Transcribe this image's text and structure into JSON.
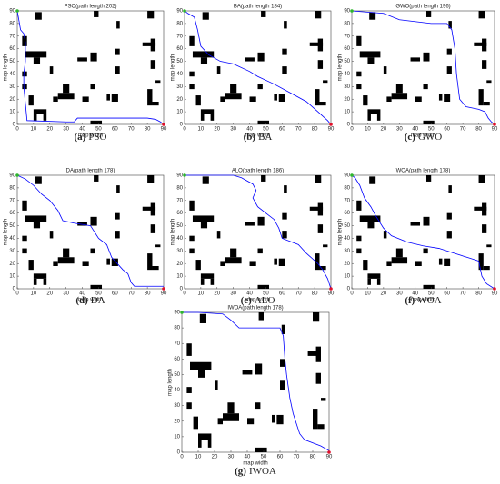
{
  "map": {
    "obstacles": [
      [
        3,
        62,
        3,
        8
      ],
      [
        11,
        83,
        4,
        6
      ],
      [
        3,
        38,
        3,
        4
      ],
      [
        3,
        28,
        3,
        4
      ],
      [
        7,
        15,
        3,
        8
      ],
      [
        5,
        53,
        13,
        5
      ],
      [
        10,
        48,
        4,
        5
      ],
      [
        10,
        8,
        8,
        4
      ],
      [
        10,
        3,
        2,
        5
      ],
      [
        16,
        3,
        2,
        5
      ],
      [
        20,
        40,
        2,
        6
      ],
      [
        22,
        18,
        3,
        4
      ],
      [
        25,
        20,
        10,
        5
      ],
      [
        28,
        25,
        4,
        7
      ],
      [
        37,
        50,
        6,
        3
      ],
      [
        40,
        18,
        4,
        4
      ],
      [
        45,
        50,
        4,
        7
      ],
      [
        47,
        85,
        3,
        5
      ],
      [
        45,
        0,
        7,
        3
      ],
      [
        45,
        28,
        3,
        4
      ],
      [
        55,
        19,
        2,
        5
      ],
      [
        58,
        18,
        4,
        6
      ],
      [
        60,
        40,
        3,
        6
      ],
      [
        60,
        55,
        3,
        5
      ],
      [
        61,
        76,
        2,
        6
      ],
      [
        77,
        62,
        8,
        3
      ],
      [
        82,
        58,
        3,
        10
      ],
      [
        80,
        84,
        4,
        6
      ],
      [
        82,
        44,
        3,
        7
      ],
      [
        85,
        33,
        3,
        2
      ],
      [
        80,
        15,
        3,
        13
      ],
      [
        83,
        15,
        4,
        3
      ]
    ],
    "start": [
      0,
      90
    ],
    "goal": [
      90,
      0
    ]
  },
  "chart_data": [
    {
      "type": "line",
      "title": "PSO(path length 202)",
      "caption_tag": "(a)",
      "caption": "PSO",
      "xlabel": "map width",
      "ylabel": "map length",
      "color": "#0000ff",
      "x": [
        0,
        2,
        4,
        5,
        5,
        4,
        4,
        6,
        30,
        35,
        37,
        80,
        85,
        88,
        90
      ],
      "values": [
        90,
        75,
        72,
        65,
        50,
        40,
        30,
        3,
        2,
        2,
        5,
        5,
        4,
        2,
        0
      ],
      "xlim": [
        0,
        90
      ],
      "ylim": [
        0,
        90
      ],
      "xticks": [
        0,
        10,
        20,
        30,
        40,
        50,
        60,
        70,
        80,
        90
      ],
      "yticks": [
        0,
        10,
        20,
        30,
        40,
        50,
        60,
        70,
        80,
        90
      ]
    },
    {
      "type": "line",
      "title": "BA(path length 184)",
      "caption_tag": "(b)",
      "caption": "BA",
      "xlabel": "map width",
      "ylabel": "map length",
      "color": "#0000ff",
      "x": [
        0,
        2,
        6,
        8,
        10,
        15,
        22,
        30,
        40,
        45,
        55,
        65,
        75,
        82,
        88,
        90
      ],
      "values": [
        90,
        88,
        85,
        75,
        62,
        55,
        50,
        48,
        42,
        38,
        32,
        25,
        18,
        10,
        3,
        0
      ],
      "xlim": [
        0,
        90
      ],
      "ylim": [
        0,
        90
      ],
      "xticks": [
        0,
        10,
        20,
        30,
        40,
        50,
        60,
        70,
        80,
        90
      ],
      "yticks": [
        0,
        10,
        20,
        30,
        40,
        50,
        60,
        70,
        80,
        90
      ]
    },
    {
      "type": "line",
      "title": "GWO(path length 196)",
      "caption_tag": "(c)",
      "caption": "GWO",
      "xlabel": "map width",
      "ylabel": "map length",
      "color": "#0000ff",
      "x": [
        0,
        20,
        30,
        50,
        60,
        63,
        65,
        66,
        68,
        72,
        80,
        84,
        86,
        88,
        90
      ],
      "values": [
        90,
        88,
        83,
        80,
        80,
        75,
        60,
        40,
        20,
        14,
        12,
        10,
        5,
        2,
        0
      ],
      "xlim": [
        0,
        90
      ],
      "ylim": [
        0,
        90
      ],
      "xticks": [
        0,
        10,
        20,
        30,
        40,
        50,
        60,
        70,
        80,
        90
      ],
      "yticks": [
        0,
        10,
        20,
        30,
        40,
        50,
        60,
        70,
        80,
        90
      ]
    },
    {
      "type": "line",
      "title": "DA(path length 178)",
      "caption_tag": "(d)",
      "caption": "DA",
      "xlabel": "map width",
      "ylabel": "map length",
      "color": "#0000ff",
      "x": [
        0,
        5,
        10,
        15,
        20,
        25,
        28,
        35,
        45,
        50,
        55,
        58,
        65,
        68,
        70,
        72,
        90
      ],
      "values": [
        90,
        87,
        82,
        75,
        70,
        62,
        54,
        52,
        50,
        40,
        35,
        25,
        15,
        12,
        5,
        2,
        2
      ],
      "xlim": [
        0,
        90
      ],
      "ylim": [
        0,
        90
      ],
      "xticks": [
        0,
        10,
        20,
        30,
        40,
        50,
        60,
        70,
        80,
        90
      ],
      "yticks": [
        0,
        10,
        20,
        30,
        40,
        50,
        60,
        70,
        80,
        90
      ]
    },
    {
      "type": "line",
      "title": "ALO(path length 186)",
      "caption_tag": "(e)",
      "caption": "ALO",
      "xlabel": "map width",
      "ylabel": "map length",
      "color": "#0000ff",
      "x": [
        0,
        30,
        35,
        42,
        44,
        42,
        45,
        50,
        55,
        58,
        60,
        70,
        75,
        82,
        85,
        88,
        90
      ],
      "values": [
        90,
        90,
        88,
        83,
        78,
        72,
        65,
        60,
        55,
        48,
        40,
        35,
        28,
        20,
        15,
        8,
        0
      ],
      "xlim": [
        0,
        90
      ],
      "ylim": [
        0,
        90
      ],
      "xticks": [
        0,
        10,
        20,
        30,
        40,
        50,
        60,
        70,
        80,
        90
      ],
      "yticks": [
        0,
        10,
        20,
        30,
        40,
        50,
        60,
        70,
        80,
        90
      ]
    },
    {
      "type": "line",
      "title": "WOA(path length 178)",
      "caption_tag": "(f)",
      "caption": "WOA",
      "xlabel": "map width",
      "ylabel": "map length",
      "color": "#0000ff",
      "x": [
        0,
        2,
        5,
        8,
        12,
        15,
        20,
        25,
        35,
        45,
        55,
        65,
        75,
        80,
        82,
        85,
        90
      ],
      "values": [
        90,
        88,
        82,
        72,
        65,
        58,
        48,
        42,
        37,
        34,
        32,
        28,
        24,
        22,
        10,
        4,
        0
      ],
      "xlim": [
        0,
        90
      ],
      "ylim": [
        0,
        90
      ],
      "xticks": [
        0,
        10,
        20,
        30,
        40,
        50,
        60,
        70,
        80,
        90
      ],
      "yticks": [
        0,
        10,
        20,
        30,
        40,
        50,
        60,
        70,
        80,
        90
      ]
    },
    {
      "type": "line",
      "title": "IWOA(path length 178)",
      "caption_tag": "(g)",
      "caption": "IWOA",
      "xlabel": "map width",
      "ylabel": "map length",
      "color": "#0000ff",
      "x": [
        0,
        10,
        25,
        30,
        35,
        60,
        62,
        63,
        64,
        66,
        68,
        72,
        75,
        85,
        90
      ],
      "values": [
        90,
        90,
        89,
        85,
        80,
        80,
        75,
        60,
        50,
        35,
        25,
        12,
        8,
        4,
        1
      ],
      "xlim": [
        0,
        90
      ],
      "ylim": [
        0,
        90
      ],
      "xticks": [
        0,
        10,
        20,
        30,
        40,
        50,
        60,
        70,
        80,
        90
      ],
      "yticks": [
        0,
        10,
        20,
        30,
        40,
        50,
        60,
        70,
        80,
        90
      ]
    }
  ]
}
